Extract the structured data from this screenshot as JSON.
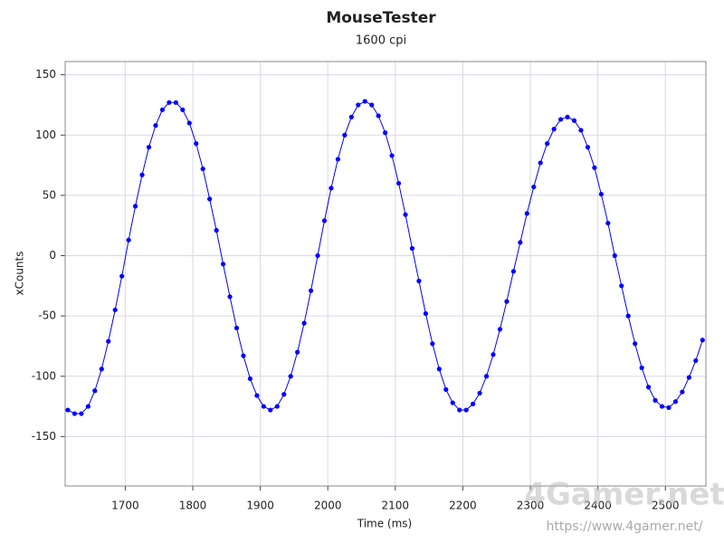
{
  "chart_data": {
    "type": "scatter",
    "title": "MouseTester",
    "subtitle": "1600 cpi",
    "x_label": "Time (ms)",
    "y_label": "xCounts",
    "annotations": [
      "4Gamer.net",
      "https://www.4gamer.net/"
    ],
    "xlim": [
      1611,
      2560
    ],
    "ylim": [
      -191,
      161
    ],
    "xticks": [
      1700,
      1800,
      1900,
      2000,
      2100,
      2200,
      2300,
      2400,
      2500
    ],
    "yticks": [
      -150,
      -100,
      -50,
      0,
      50,
      100,
      150
    ],
    "grid": true,
    "x": [
      1615,
      1625,
      1635,
      1645,
      1655,
      1665,
      1675,
      1685,
      1695,
      1705,
      1715,
      1725,
      1735,
      1745,
      1755,
      1765,
      1775,
      1785,
      1795,
      1805,
      1815,
      1825,
      1835,
      1845,
      1855,
      1865,
      1875,
      1885,
      1895,
      1905,
      1915,
      1925,
      1935,
      1945,
      1955,
      1965,
      1975,
      1985,
      1995,
      2005,
      2015,
      2025,
      2035,
      2045,
      2055,
      2065,
      2075,
      2085,
      2095,
      2105,
      2115,
      2125,
      2135,
      2145,
      2155,
      2165,
      2175,
      2185,
      2195,
      2205,
      2215,
      2225,
      2235,
      2245,
      2255,
      2265,
      2275,
      2285,
      2295,
      2305,
      2315,
      2325,
      2335,
      2345,
      2355,
      2365,
      2375,
      2385,
      2395,
      2405,
      2415,
      2425,
      2435,
      2445,
      2455,
      2465,
      2475,
      2485,
      2495,
      2505,
      2515,
      2525,
      2535,
      2545,
      2555
    ],
    "series": [
      {
        "color": "#0000ff",
        "values": [
          -128,
          -131,
          -131,
          -125,
          -112,
          -94,
          -71,
          -45,
          -17,
          13,
          41,
          67,
          90,
          108,
          121,
          127,
          127,
          121,
          110,
          93,
          72,
          47,
          21,
          -7,
          -34,
          -60,
          -83,
          -102,
          -116,
          -125,
          -128,
          -125,
          -115,
          -100,
          -80,
          -56,
          -29,
          0,
          29,
          56,
          80,
          100,
          115,
          125,
          128,
          125,
          116,
          102,
          83,
          60,
          34,
          6,
          -21,
          -48,
          -73,
          -94,
          -111,
          -122,
          -128,
          -128,
          -123,
          -114,
          -100,
          -82,
          -61,
          -38,
          -13,
          11,
          35,
          57,
          77,
          93,
          105,
          113,
          115,
          112,
          104,
          90,
          73,
          51,
          27,
          0,
          -25,
          -50,
          -73,
          -93,
          -109,
          -120,
          -125,
          -126,
          -121,
          -113,
          -101,
          -87,
          -70
        ]
      }
    ]
  }
}
